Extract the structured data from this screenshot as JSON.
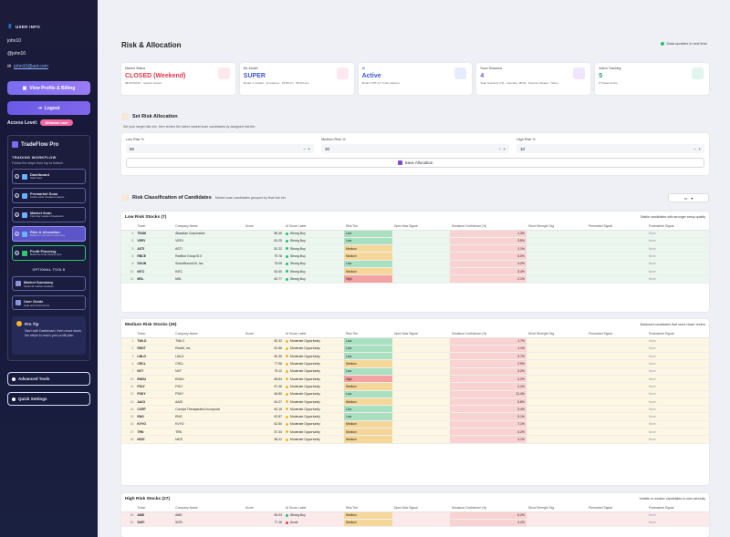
{
  "sidebar": {
    "user_info_label": "USER INFO",
    "username": "john10",
    "handle": "@john10",
    "email": "john10@aol.com",
    "view_profile_label": "View Profile & Billing",
    "logout_label": "Logout",
    "access_level_label": "Access Level:",
    "access_level_value": "Ultimate user",
    "brand": "TradeFlow Pro",
    "workflow_label": "TRADING WORKFLOW",
    "workflow_sub": "Follow the steps from top to bottom",
    "steps": [
      {
        "num": "1",
        "title": "Dashboard",
        "desc": "Start here"
      },
      {
        "num": "2",
        "title": "Premarket Scan",
        "desc": "Catch early breakout setups"
      },
      {
        "num": "3",
        "title": "Market Scan",
        "desc": "Find day session breakouts"
      },
      {
        "num": "4",
        "title": "Risk & Allocation",
        "desc": "Balance risk before planning"
      },
      {
        "num": "5",
        "title": "Profit Planning",
        "desc": "Build the final trading plan"
      }
    ],
    "optional_label": "OPTIONAL TOOLS",
    "tools": [
      {
        "title": "Market Summary",
        "desc": "Optional market analysis"
      },
      {
        "title": "User Guide",
        "desc": "Help and instructions"
      }
    ],
    "tip_title": "Pro Tip",
    "tip_body": "Start with Dashboard, then move down the steps to reach your profit plan.",
    "advanced_label": "Advanced Tools",
    "quick_label": "Quick Settings"
  },
  "header": {
    "title": "Risk & Allocation",
    "live_text": "Data updates in real time"
  },
  "cards": [
    {
      "label": "Market Status",
      "value": "CLOSED (Weekend)",
      "sub": "08:28 PM ET · session closed",
      "color": "#e0394d",
      "icon": "market-status-icon",
      "icon_bg": "#fde8ea"
    },
    {
      "label": "ML Model",
      "value": "SUPER",
      "sub": "Model: 4 models · 11 features · 25.8% F1 · 88.2% acc",
      "color": "#3a57d6",
      "icon": "ml-model-icon",
      "icon_bg": "#fde8f1"
    },
    {
      "label": "AI",
      "value": "Active",
      "sub": "Model: GPT-4.1 Turbo (tokens)",
      "color": "#3a57d6",
      "icon": "ai-icon",
      "icon_bg": "#e6ecfd"
    },
    {
      "label": "Scan Sessions",
      "value": "4",
      "sub": "Scan Sessions (7d) · Last Run: 08:00 · Sources: Alpaca · Yahoo",
      "color": "#7b4fd4",
      "icon": "scan-sessions-icon",
      "icon_bg": "#efe6fd"
    },
    {
      "label": "Active Tracking",
      "value": "5",
      "sub": "5 Trades Active",
      "color": "#18a06a",
      "icon": "active-tracking-icon",
      "icon_bg": "#e1f5ef"
    }
  ],
  "allocation": {
    "title": "Set Risk Allocation",
    "desc": "Set your target risk mix, then review the latest market scan candidates by assigned risk tier.",
    "low_label": "Low Risk %",
    "low_value": "60",
    "medium_label": "Medium Risk %",
    "medium_value": "30",
    "high_label": "High Risk %",
    "high_value": "10",
    "save_label": "Save Allocation"
  },
  "classification": {
    "title": "Risk Classification of Candidates",
    "desc": "Market scan candidates grouped by final risk tier.",
    "dropdown": "▾"
  },
  "low_section": {
    "title": "Low Risk Stocks (7)",
    "note": "Stable candidates with stronger setup quality",
    "headers": [
      "",
      "Ticker",
      "Company Name",
      "Score",
      "AI Score Label",
      "Risk Tier",
      "Open Max Signal",
      "Breakout Confidence (%)",
      "Short Strength Tag",
      "Premarket Signal",
      "Postmarket Signal"
    ],
    "rows": [
      [
        "4",
        "TEAM",
        "Atlassian Corporation",
        "86.46",
        "Strong Buy",
        "Low",
        "",
        "1.3%",
        "",
        "",
        "None"
      ],
      [
        "8",
        "VEEV",
        "VEEV",
        "81.25",
        "Strong Buy",
        "Low",
        "",
        "3.5%",
        "",
        "",
        "None"
      ],
      [
        "5",
        "ASTI",
        "ASTI",
        "81.22",
        "Strong Buy",
        "Medium",
        "",
        "1.1%",
        "",
        "",
        "None"
      ],
      [
        "6",
        "RBCE",
        "RedBox Group B.V.",
        "79.78",
        "Strong Buy",
        "Medium",
        "",
        "6.0%",
        "",
        "",
        "None"
      ],
      [
        "8",
        "SOUN",
        "SoundHound AI, Inc.",
        "75.05",
        "Strong Buy",
        "Low",
        "",
        "4.2%",
        "",
        "",
        "None"
      ],
      [
        "10",
        "INTC",
        "INTC",
        "63.40",
        "Strong Buy",
        "Medium",
        "",
        "3.4%",
        "",
        "",
        "None"
      ],
      [
        "11",
        "MSL",
        "MSL",
        "62.77",
        "Strong Buy",
        "High",
        "",
        "2.1%",
        "",
        "",
        "None"
      ]
    ]
  },
  "medium_section": {
    "title": "Medium Risk Stocks (26)",
    "note": "Balanced candidates that need closer review",
    "headers": [
      "",
      "Ticker",
      "Company Name",
      "Score",
      "AI Score Label",
      "Risk Tier",
      "Open Max Signal",
      "Breakout Confidence (%)",
      "Short Strength Tag",
      "Premarket Signal",
      "Postmarket Signal"
    ],
    "rows": [
      [
        "1",
        "TWLO",
        "TWLO",
        "82.32",
        "Moderate Opportunity",
        "Low",
        "",
        "1.7%",
        "",
        "",
        "None"
      ],
      [
        "2",
        "RDDT",
        "Reddit, Inc.",
        "81.86",
        "Moderate Opportunity",
        "Low",
        "",
        "1.1%",
        "",
        "",
        "None"
      ],
      [
        "3",
        "LMLG",
        "LMLG",
        "80.35",
        "Moderate Opportunity",
        "Low",
        "",
        "3.7%",
        "",
        "",
        "None"
      ],
      [
        "6",
        "CRCL",
        "CRCL",
        "77.98",
        "Moderate Opportunity",
        "Medium",
        "",
        "2.9%",
        "",
        "",
        "None"
      ],
      [
        "7",
        "NVT",
        "NVT",
        "75.12",
        "Moderate Opportunity",
        "Low",
        "",
        "3.2%",
        "",
        "",
        "None"
      ],
      [
        "10",
        "ENDU",
        "ENDU",
        "68.84",
        "Moderate Opportunity",
        "High",
        "",
        "4.2%",
        "",
        "",
        "None"
      ],
      [
        "11",
        "FSLY",
        "FSLY",
        "67.46",
        "Moderate Opportunity",
        "Medium",
        "",
        "2.1%",
        "",
        "",
        "None"
      ],
      [
        "12",
        "PSKY",
        "PSKY",
        "66.80",
        "Moderate Opportunity",
        "Low",
        "",
        "11.4%",
        "",
        "",
        "None"
      ],
      [
        "13",
        "AAOI",
        "AAOI",
        "64.27",
        "Moderate Opportunity",
        "Medium",
        "",
        "5.8%",
        "",
        "",
        "None"
      ],
      [
        "14",
        "CORT",
        "Corcept Therapeutics Incorporat",
        "64.15",
        "Moderate Opportunity",
        "Low",
        "",
        "3.4%",
        "",
        "",
        "None"
      ],
      [
        "15",
        "ENG",
        "ENG",
        "62.87",
        "Moderate Opportunity",
        "Low",
        "",
        "5.1%",
        "",
        "",
        "None"
      ],
      [
        "16",
        "KVYO",
        "KVYO",
        "62.50",
        "Moderate Opportunity",
        "Medium",
        "",
        "7.1%",
        "",
        "",
        "None"
      ],
      [
        "17",
        "TRN",
        "TRN",
        "57.33",
        "Moderate Opportunity",
        "Medium",
        "",
        "5.2%",
        "",
        "",
        "None"
      ],
      [
        "18",
        "NICE",
        "NICE",
        "58.22",
        "Moderate Opportunity",
        "Medium",
        "",
        "3.1%",
        "",
        "",
        "None"
      ]
    ]
  },
  "high_section": {
    "title": "High Risk Stocks (27)",
    "note": "Volatile or weaker candidates to size carefully",
    "headers": [
      "",
      "Ticker",
      "Company Name",
      "Score",
      "AI Score Label",
      "Risk Tier",
      "Open Max Signal",
      "Breakout Confidence (%)",
      "Short Strength Tag",
      "Premarket Signal",
      "Postmarket Signal"
    ],
    "rows": [
      [
        "30",
        "AMD",
        "AMD",
        "83.03",
        "Strong Buy",
        "Medium",
        "",
        "6.2%",
        "",
        "",
        "None"
      ],
      [
        "31",
        "SOFI",
        "SOFI",
        "77.16",
        "Avoid",
        "Medium",
        "",
        "4.1%",
        "",
        "",
        "None"
      ]
    ]
  },
  "colors": {
    "low_row": "#eaf6ee",
    "medium_row": "#fdf6e3",
    "high_row": "#fceaea",
    "tier_low": "#a8e0c0",
    "tier_medium": "#f6d79a",
    "tier_high": "#f4a3a3",
    "confidence": "#f9d2d2",
    "strong_buy": "#25c06e",
    "moderate": "#f2b632",
    "avoid": "#e0394d"
  }
}
